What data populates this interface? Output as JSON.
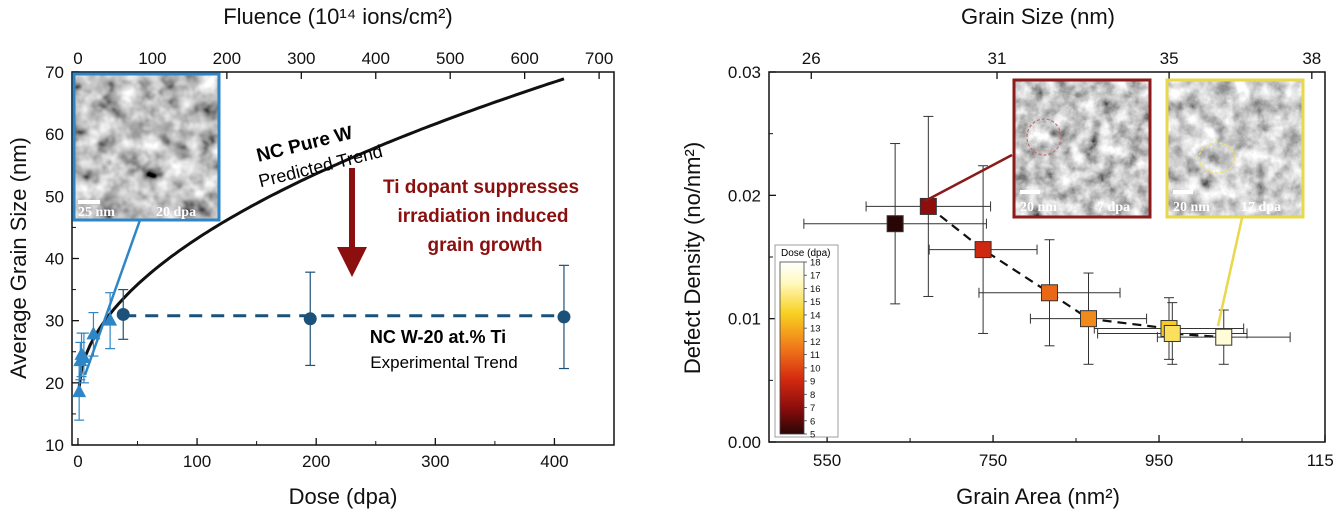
{
  "chart_data": [
    {
      "type": "scatter",
      "xlabel": "Dose (dpa)",
      "ylabel": "Average Grain Size (nm)",
      "top_axis_label": "Fluence (10¹⁴ ions/cm²)",
      "xlim": [
        -5,
        450
      ],
      "ylim": [
        10,
        70
      ],
      "x_ticks": [
        "0",
        "100",
        "200",
        "300",
        "400"
      ],
      "y_ticks": [
        "10",
        "20",
        "30",
        "40",
        "50",
        "60",
        "70"
      ],
      "top_ticks": [
        "0",
        "100",
        "200",
        "300",
        "400",
        "500",
        "600",
        "700"
      ],
      "top_tick_values": [
        0,
        100,
        200,
        300,
        400,
        500,
        600,
        700
      ],
      "fluence_per_dpa": 1.6,
      "series": [
        {
          "name": "NC W-20 at.% Ti",
          "marker": "triangle",
          "color": "#2f86c6",
          "x": [
            1,
            2,
            3,
            5,
            13,
            27
          ],
          "y": [
            18.5,
            23.5,
            24.5,
            24.0,
            27.8,
            30.0
          ],
          "err": [
            4.5,
            3.0,
            3.5,
            4.0,
            3.5,
            4.5
          ]
        },
        {
          "name": "NC W-20 at.% Ti",
          "marker": "circle",
          "color": "#1c5279",
          "x": [
            38,
            195,
            408
          ],
          "y": [
            31.0,
            30.3,
            30.6
          ],
          "err": [
            4.0,
            7.5,
            8.3
          ]
        }
      ],
      "trend_pure_w": {
        "x0": 0,
        "y0": 18,
        "k": 2.52,
        "p": 0.5,
        "x_end": 408
      },
      "trend_ti": {
        "y": 30.8,
        "x_start": 38,
        "x_end": 408
      },
      "annotations": {
        "pure_w_bold": "NC Pure W",
        "pure_w_sub": "Predicted Trend",
        "ti_bold": "NC W-20 at.% Ti",
        "ti_sub": "Experimental Trend",
        "dopant_line1": "Ti dopant suppresses",
        "dopant_line2": "irradiation induced",
        "dopant_line3": "grain growth"
      },
      "inset": {
        "scale": "25 nm",
        "label": "20 dpa",
        "border": "#2f86c6"
      }
    },
    {
      "type": "scatter",
      "xlabel": "Grain Area (nm²)",
      "ylabel": "Defect Density (no/nm²)",
      "top_axis_label": "Grain Size (nm)",
      "xlim": [
        480,
        1150
      ],
      "ylim": [
        0,
        0.03
      ],
      "x_ticks": [
        "550",
        "750",
        "950",
        "1150"
      ],
      "y_ticks": [
        "0.00",
        "0.01",
        "0.02",
        "0.03"
      ],
      "top_ticks": [
        "26",
        "31",
        "35",
        "38"
      ],
      "top_tick_values": [
        26,
        31,
        35,
        38
      ],
      "points": [
        {
          "x": 632,
          "y": 0.0177,
          "dose": 5,
          "xerr": 110,
          "yerr": 0.0065
        },
        {
          "x": 672,
          "y": 0.0191,
          "dose": 7,
          "xerr": 75,
          "yerr": 0.0073
        },
        {
          "x": 738,
          "y": 0.0156,
          "dose": 9,
          "xerr": 65,
          "yerr": 0.0068
        },
        {
          "x": 818,
          "y": 0.0121,
          "dose": 11,
          "xerr": 85,
          "yerr": 0.0043
        },
        {
          "x": 865,
          "y": 0.01,
          "dose": 12,
          "xerr": 70,
          "yerr": 0.0037
        },
        {
          "x": 962,
          "y": 0.0092,
          "dose": 14,
          "xerr": 90,
          "yerr": 0.0025
        },
        {
          "x": 966,
          "y": 0.0088,
          "dose": 15,
          "xerr": 90,
          "yerr": 0.0025
        },
        {
          "x": 1028,
          "y": 0.0085,
          "dose": 17,
          "xerr": 80,
          "yerr": 0.0022
        }
      ],
      "colorbar": {
        "title": "Dose (dpa)",
        "labels": [
          "5",
          "6",
          "7",
          "8",
          "9",
          "10",
          "11",
          "12",
          "13",
          "14",
          "15",
          "16",
          "17",
          "18"
        ],
        "colors": [
          "#2a0505",
          "#8b0d0d",
          "#d42a10",
          "#f0781a",
          "#f8d020",
          "#fffac0",
          "#ffffff"
        ]
      },
      "insets": [
        {
          "scale": "20 nm",
          "label": "7 dpa",
          "border": "#8b1a1a"
        },
        {
          "scale": "20 nm",
          "label": "17 dpa",
          "border": "#e8d84a"
        }
      ]
    }
  ]
}
